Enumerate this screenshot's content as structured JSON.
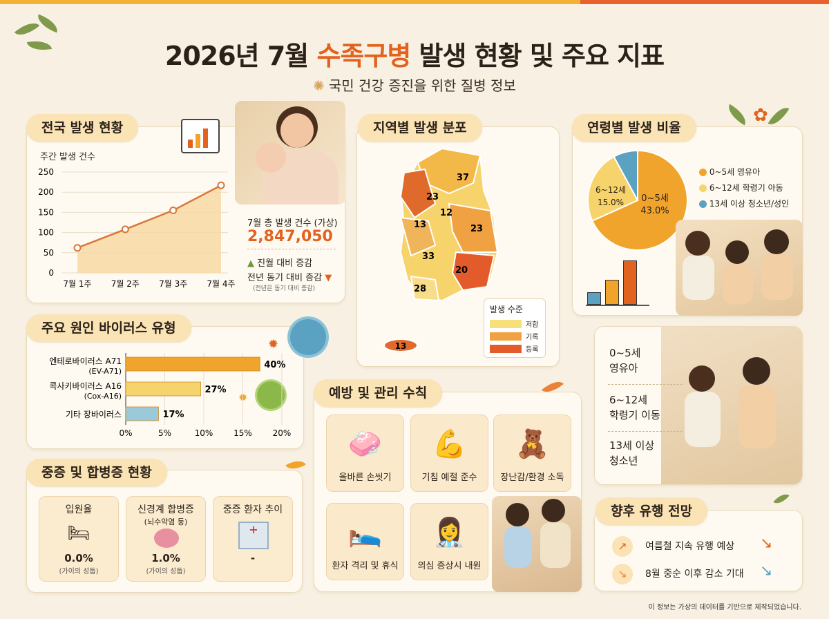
{
  "title": {
    "part1": "2026년 7월 ",
    "highlight": "수족구병",
    "part2": " 발생 현황 및 주요 지표"
  },
  "subtitle": "국민 건강 증진을 위한 질병 정보",
  "national": {
    "heading": "전국 발생 현황",
    "y_axis_label": "주간 발생 건수",
    "total_label": "7월 총 발생 건수 (가상)",
    "total_value": "2,847,050",
    "mom": "진월 대비 증감",
    "yoy": "전년 동기 대비 증감",
    "note": "(전년은 동기 대비 증감)"
  },
  "chart_data": [
    {
      "type": "area",
      "x": [
        "7월 1주",
        "7월 2주",
        "7월 3주",
        "7월 4주"
      ],
      "values": [
        62,
        108,
        155,
        217
      ],
      "ylabel": "주간 발생 건수",
      "ylim": [
        0,
        250
      ],
      "yticks": [
        "0",
        "50",
        "100",
        "150",
        "200",
        "250"
      ],
      "grid": true
    },
    {
      "type": "bar",
      "orientation": "horizontal",
      "categories": [
        "엔테로바이러스 A71",
        "콕사키바이러스 A16",
        "기타 장바이러스"
      ],
      "sublabels": [
        "(EV-A71)",
        "(Cox-A16)",
        ""
      ],
      "values": [
        40,
        27,
        17
      ],
      "value_labels": [
        "40%",
        "27%",
        "17%"
      ],
      "xlim": [
        0,
        20
      ],
      "xticks": [
        "0%",
        "5%",
        "10%",
        "15%",
        "20%"
      ]
    },
    {
      "type": "pie",
      "slices": [
        {
          "label": "0~5세",
          "value": 43.0,
          "pct": "43.0%"
        },
        {
          "label": "6~12세",
          "value": 15.0,
          "pct": "15.0%"
        },
        {
          "label": "13세 이상",
          "value": 5.0,
          "pct": ""
        }
      ]
    }
  ],
  "region": {
    "heading": "지역별 발생 분포",
    "values": [
      "37",
      "23",
      "12",
      "13",
      "23",
      "33",
      "20",
      "28",
      "13"
    ],
    "legend_title": "발생 수준",
    "legend": [
      "저함",
      "기록",
      "등록"
    ]
  },
  "virus": {
    "heading": "주요 원인 바이러스 유형"
  },
  "age": {
    "heading": "연령별 발생 비율",
    "legend": [
      "0~5세 영유아",
      "6~12세 학령기 아동",
      "13세 이상 청소년/성인"
    ],
    "pie_label_a": "0~5세",
    "pie_label_b": "6~12세"
  },
  "age_list": [
    {
      "l1": "0~5세",
      "l2": "영유아"
    },
    {
      "l1": "6~12세",
      "l2": "학령기 이동"
    },
    {
      "l1": "13세 이상",
      "l2": "청소년"
    }
  ],
  "severe": {
    "heading": "중증 및 합병증 현황",
    "items": [
      {
        "title": "입원율",
        "sub": "",
        "value": "0.0%",
        "note": "(가이의 성둡)"
      },
      {
        "title": "신경계 합병증",
        "sub": "(뇌수악염 둥)",
        "value": "1.0%",
        "note": "(가이의 성둡)"
      },
      {
        "title": "중증 환자 추이",
        "sub": "",
        "value": "-",
        "note": ""
      }
    ]
  },
  "prevention": {
    "heading": "예방 및 관리 수칙",
    "items": [
      "올바른 손씻기",
      "기침 예절 준수",
      "장난감/환경 소독",
      "환자 격리 및 휴식",
      "의심 증상시 내원"
    ]
  },
  "forecast": {
    "heading": "향후 유행 전망",
    "items": [
      "여름철 지속 유행 예상",
      "8월 중순 이후 감소 기대"
    ]
  },
  "footer": "이 정보는 가상의 데이터를 기반으로 제작되었습니다.",
  "colors": {
    "orange": "#e2621f",
    "amber": "#f0a42b",
    "yellow": "#f7d36b",
    "blue": "#5aa1c2",
    "red": "#d9432a"
  }
}
